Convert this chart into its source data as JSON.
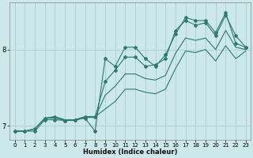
{
  "xlabel": "Humidex (Indice chaleur)",
  "bg_color": "#cce8ea",
  "line_color": "#2d7b70",
  "grid_color": "#aacfcf",
  "xlim": [
    -0.5,
    23.5
  ],
  "ylim": [
    6.82,
    8.62
  ],
  "yticks": [
    7.0,
    8.0
  ],
  "xticks": [
    0,
    1,
    2,
    3,
    4,
    5,
    6,
    7,
    8,
    9,
    10,
    11,
    12,
    13,
    14,
    15,
    16,
    17,
    18,
    19,
    20,
    21,
    22,
    23
  ],
  "series_with_markers": [
    [
      6.93,
      6.93,
      6.93,
      7.08,
      7.08,
      7.07,
      7.08,
      7.1,
      6.93,
      7.88,
      7.78,
      8.03,
      8.03,
      7.88,
      7.78,
      7.93,
      8.2,
      8.42,
      8.38,
      8.38,
      8.22,
      8.48,
      8.08,
      8.03
    ],
    [
      6.93,
      6.93,
      6.96,
      7.1,
      7.12,
      7.07,
      7.08,
      7.12,
      7.12,
      7.58,
      7.73,
      7.9,
      7.9,
      7.78,
      7.8,
      7.88,
      8.25,
      8.38,
      8.32,
      8.35,
      8.18,
      8.45,
      8.18,
      8.03
    ]
  ],
  "series_smooth": [
    [
      6.93,
      6.93,
      6.96,
      7.1,
      7.1,
      7.07,
      7.07,
      7.11,
      7.11,
      7.4,
      7.52,
      7.68,
      7.68,
      7.62,
      7.6,
      7.66,
      7.95,
      8.15,
      8.12,
      8.15,
      8.0,
      8.25,
      8.03,
      8.0
    ],
    [
      6.93,
      6.93,
      6.96,
      7.1,
      7.12,
      7.08,
      7.08,
      7.12,
      7.12,
      7.22,
      7.32,
      7.48,
      7.48,
      7.44,
      7.42,
      7.48,
      7.75,
      7.98,
      7.96,
      8.0,
      7.85,
      8.05,
      7.88,
      7.98
    ]
  ]
}
